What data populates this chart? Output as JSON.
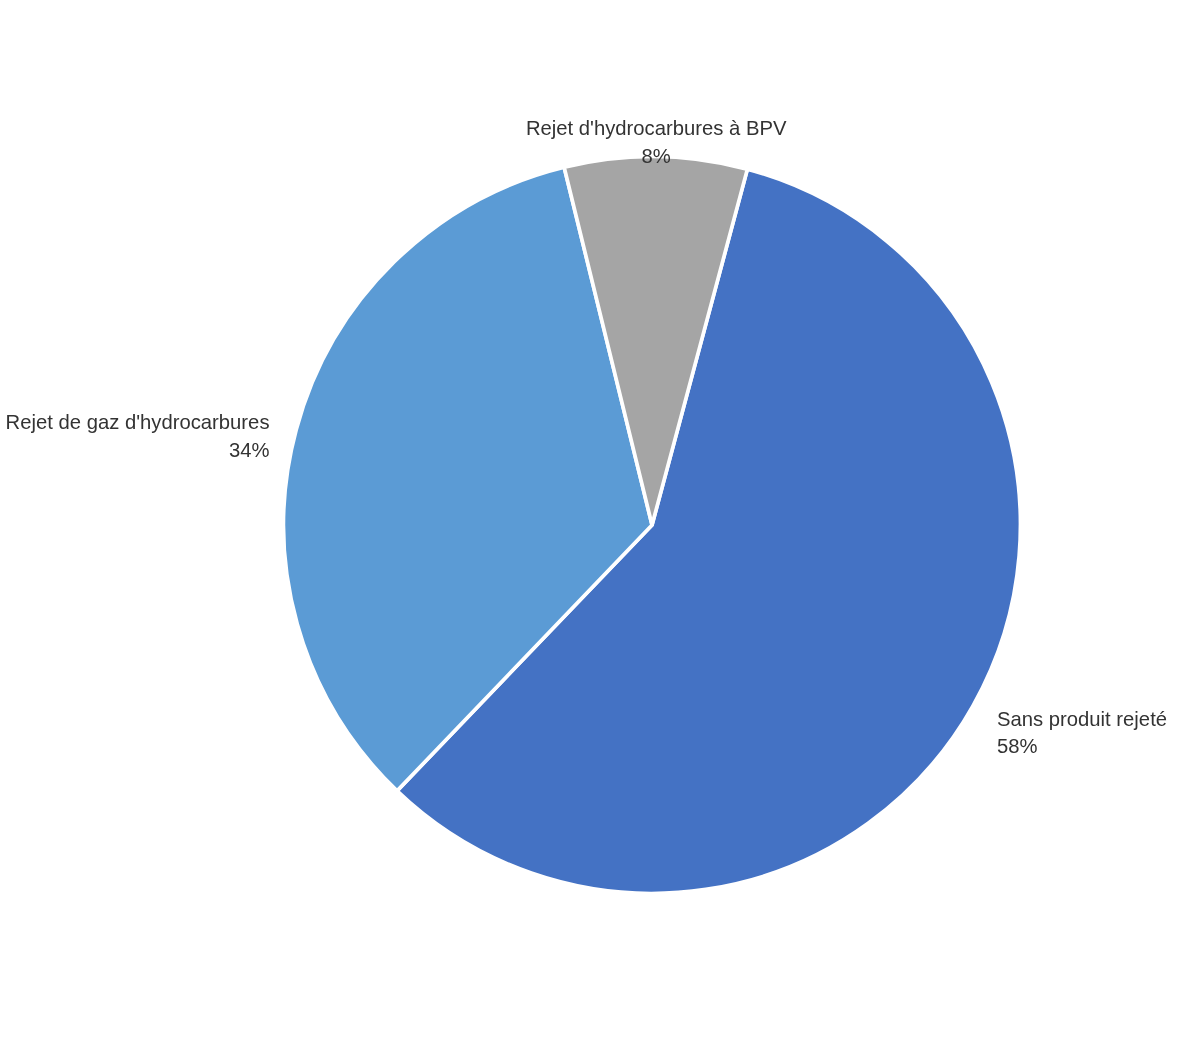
{
  "chart_data": {
    "type": "pie",
    "categories": [
      "Sans produit rejeté",
      "Rejet de gaz d'hydrocarbures",
      "Rejet d'hydrocarbures à BPV"
    ],
    "values": [
      58,
      34,
      8
    ],
    "colors": [
      "#4472c4",
      "#5b9bd5",
      "#a5a5a5"
    ],
    "value_labels": [
      "58%",
      "34%",
      "8%"
    ],
    "legend": false
  }
}
